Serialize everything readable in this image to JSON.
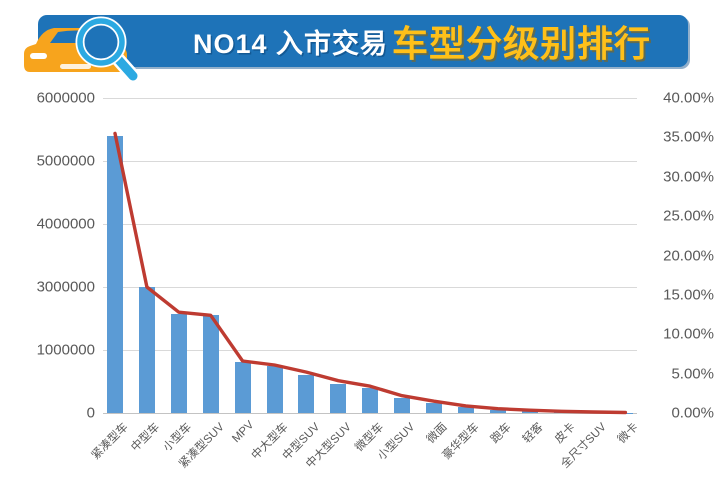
{
  "header": {
    "title_prefix": "NO14 入市交易",
    "title_highlight": "车型分级别排行",
    "banner_color": "#1e73b8",
    "highlight_color": "#ffc019",
    "icons": [
      "car-icon",
      "magnifier-icon"
    ],
    "car_color": "#f7a41d",
    "magnifier_color": "#2ba9e2"
  },
  "chart_data": {
    "type": "combo",
    "series": [
      {
        "name": "bars",
        "type": "bar",
        "axis": "left",
        "values": [
          5400000,
          3000000,
          2150000,
          2100000,
          810000,
          750000,
          600000,
          460000,
          400000,
          240000,
          160000,
          90000,
          50000,
          32000,
          24000,
          16000,
          8000
        ]
      },
      {
        "name": "line",
        "type": "line",
        "axis": "right",
        "values_pct": [
          35.5,
          16.0,
          12.8,
          12.4,
          6.6,
          6.1,
          5.2,
          4.1,
          3.4,
          2.2,
          1.5,
          0.9,
          0.55,
          0.35,
          0.22,
          0.13,
          0.06
        ]
      }
    ],
    "categories": [
      "紧凑型车",
      "中型车",
      "小型车",
      "紧凑型SUV",
      "MPV",
      "中大型车",
      "中型SUV",
      "中大型SUV",
      "微型车",
      "小型SUV",
      "微面",
      "豪华型车",
      "跑车",
      "轻客",
      "皮卡",
      "全尺寸SUV",
      "微卡"
    ],
    "left_axis_ticks": [
      "6000000",
      "5000000",
      "4000000",
      "3000000",
      "1000000",
      "0"
    ],
    "right_axis_ticks": [
      "40.00%",
      "35.00%",
      "30.00%",
      "25.00%",
      "20.00%",
      "15.00%",
      "10.00%",
      "5.00%",
      "0.00%"
    ],
    "right_axis_max_pct": 40,
    "bar_color": "#5b9bd5",
    "line_color": "#be3b31",
    "gridline_color": "#d9d9d9",
    "axis_text_color": "#595959",
    "grid": true,
    "legend": false
  }
}
